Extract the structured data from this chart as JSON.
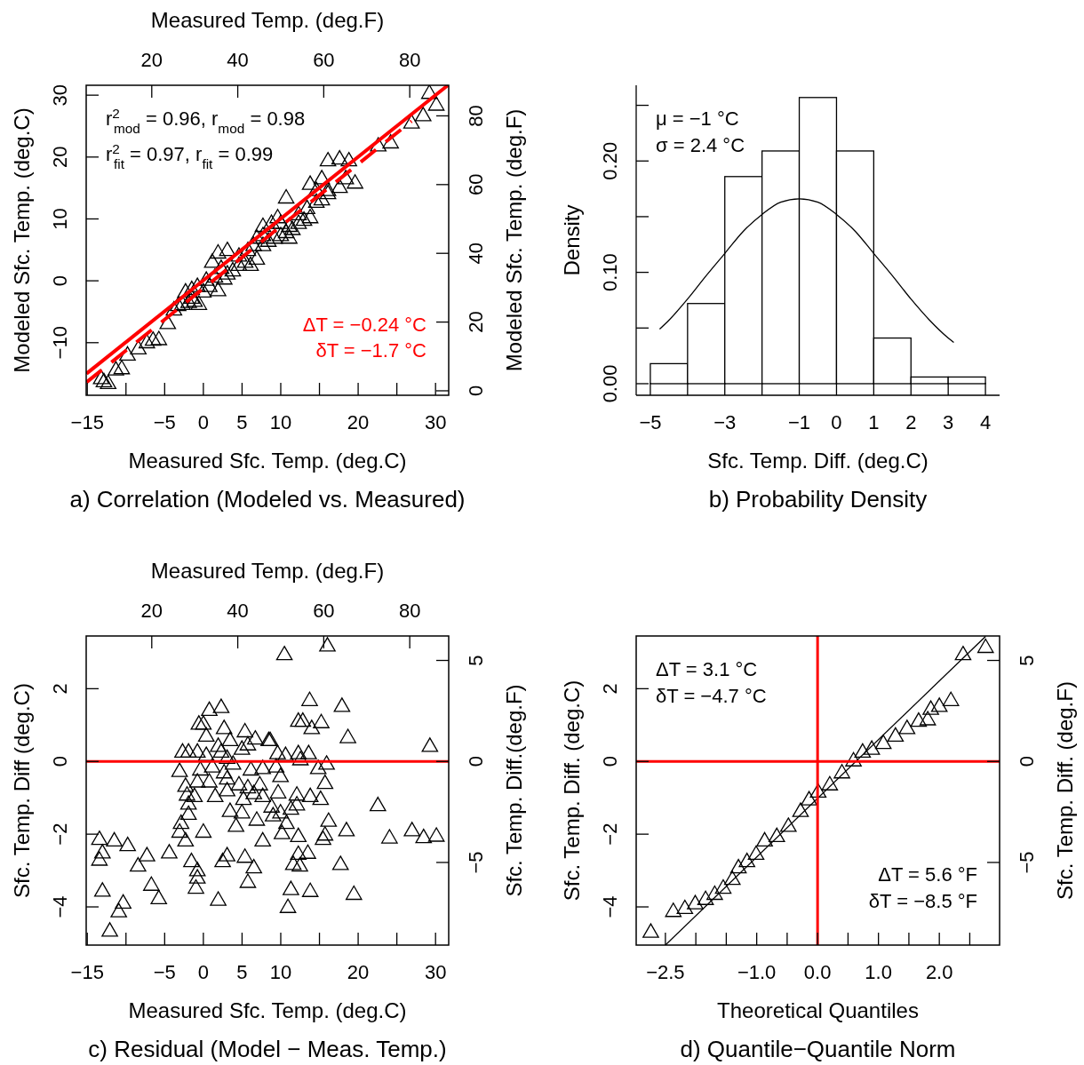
{
  "chart_data": [
    {
      "type": "scatter",
      "title": "a) Correlation (Modeled vs. Measured)",
      "xlabel": "Measured Sfc. Temp. (deg.C)",
      "ylabel": "Modeled Sfc. Temp. (deg.C)",
      "x2label": "Measured Temp. (deg.F)",
      "y2label": "Modeled Sfc. Temp. (deg.F)",
      "xlim": [
        -15.14,
        31.7
      ],
      "ylim": [
        -18.5,
        31.6
      ],
      "x2lim": [
        4.75,
        89.06
      ],
      "y2lim": [
        -1.3,
        88.9
      ],
      "xticks": [
        {
          "value": -15,
          "label": "−15"
        },
        {
          "value": -10,
          "label": null
        },
        {
          "value": -5,
          "label": "−5"
        },
        0,
        5,
        10,
        {
          "value": 15,
          "label": null
        },
        20,
        {
          "value": 25,
          "label": null
        },
        30
      ],
      "yticks": [
        {
          "value": -10,
          "label": "−10"
        },
        0,
        10,
        20,
        30
      ],
      "x2ticks": [
        20,
        40,
        60,
        80
      ],
      "y2ticks": [
        0,
        20,
        40,
        60,
        80
      ],
      "annotations": [
        "r$^{2}$$_{mod}$ = 0.96, r$_{mod}$ = 0.98",
        "r$^{2}$$_{fit}$ = 0.97, r$_{fit}$ = 0.99",
        "ΔT = −0.24 °C",
        "δT = −1.7 °C"
      ],
      "series": [
        {
          "type": "scatter",
          "color": "#000000",
          "marker": "triangle",
          "x": [
            -13.2,
            -12.85,
            -12.3,
            -11.3,
            -10.55,
            -9.8,
            -8.4,
            -7.3,
            -6.5,
            -5.75,
            -4.6,
            -3.26,
            -2.7,
            -1.9,
            -1.15,
            -0.58,
            -2.3,
            -1.5,
            -0.77,
            0.0,
            0.77,
            1.9,
            0.38,
            1.5,
            2.7,
            3.1,
            2.3,
            3.8,
            4.6,
            5.4,
            6.1,
            6.9,
            4.6,
            5.75,
            6.5,
            7.7,
            8.4,
            9.2,
            10.0,
            10.7,
            11.1,
            11.5,
            12.3,
            13.0,
            13.8,
            12.3,
            13.4,
            14.6,
            15.3,
            16.1,
            14.6,
            13.8,
            15.3,
            16.1,
            17.6,
            18.4,
            19.6,
            10.7,
            16.1,
            17.6,
            18.8,
            22.6,
            24.2,
            26.9,
            28.4,
            29.2,
            30.1,
            1.9,
            3.1,
            1.15,
            7.7,
            8.8,
            10.0,
            11.1,
            9.6,
            6.9,
            7.7,
            -1.5,
            -3.8
          ],
          "values": [
            -15.9,
            -16.4,
            -16.7,
            -14.5,
            -14.3,
            -12.1,
            -11.1,
            -10.1,
            -9.7,
            -9.6,
            -7.0,
            -4.1,
            -3.9,
            -3.6,
            -3.4,
            -3.9,
            -1.9,
            -1.5,
            -1.0,
            -1.9,
            -1.0,
            -1.7,
            0.0,
            0.5,
            0.2,
            1.0,
            1.9,
            1.5,
            2.4,
            2.9,
            2.4,
            3.4,
            3.9,
            4.8,
            5.6,
            5.6,
            6.3,
            6.8,
            7.2,
            7.7,
            6.8,
            8.2,
            9.2,
            9.7,
            10.1,
            10.6,
            11.6,
            12.6,
            13.0,
            14.0,
            14.5,
            15.5,
            16.4,
            14.5,
            15.0,
            16.4,
            15.7,
            13.3,
            19.3,
            19.6,
            19.3,
            21.7,
            22.2,
            25.4,
            26.6,
            30.2,
            28.3,
            4.4,
            4.8,
            2.9,
            8.7,
            9.2,
            9.2,
            8.7,
            10.1,
            6.8,
            7.2,
            -2.9,
            -4.8
          ]
        },
        {
          "type": "line",
          "color": "#ff0000",
          "line_style": "solid",
          "marker": "none",
          "x": [
            -15.1,
            31.6
          ],
          "values": [
            -15.0,
            31.6
          ]
        },
        {
          "type": "line",
          "color": "#ff0000",
          "line_style": "dashed",
          "marker": "none",
          "x": [
            -15.1,
            26.9
          ],
          "values": [
            -16.4,
            25.8
          ]
        }
      ]
    },
    {
      "type": "histogram",
      "title": "b) Probability Density",
      "xlabel": "Sfc. Temp. Diff. (deg.C)",
      "ylabel": "Density",
      "xlim": [
        -5.38,
        4.38
      ],
      "ylim": [
        -0.0104,
        0.268
      ],
      "xticks": [
        {
          "value": -5,
          "label": "−5"
        },
        {
          "value": -4,
          "label": null
        },
        {
          "value": -3,
          "label": "−3"
        },
        {
          "value": -2,
          "label": null
        },
        {
          "value": -1,
          "label": "−1"
        },
        0,
        1,
        2,
        3,
        4
      ],
      "yticks": [
        {
          "value": 0,
          "label": "0.00"
        },
        {
          "value": 0.05,
          "label": null
        },
        {
          "value": 0.1,
          "label": "0.10"
        },
        {
          "value": 0.15,
          "label": null
        },
        {
          "value": 0.2,
          "label": "0.20"
        },
        {
          "value": 0.25,
          "label": null
        }
      ],
      "annotations": [
        "μ = −1 °C",
        "σ = 2.4 °C"
      ],
      "bins": [
        -5,
        -4,
        -3,
        -2,
        -1,
        0,
        1,
        2,
        3,
        4
      ],
      "values": [
        0.018,
        0.072,
        0.186,
        0.209,
        0.257,
        0.209,
        0.041,
        0.006,
        0.006
      ],
      "color": "#ffffff",
      "series": [
        {
          "type": "line",
          "color": "#000000",
          "line_style": "solid",
          "x": [
            -4.75,
            -4.5,
            -4,
            -3.5,
            -3,
            -2.5,
            -2,
            -1.5,
            -1,
            -0.5,
            0,
            0.5,
            1,
            1.5,
            2,
            2.5,
            3,
            3.15
          ],
          "values": [
            0.049,
            0.057,
            0.076,
            0.097,
            0.117,
            0.137,
            0.152,
            0.163,
            0.166,
            0.163,
            0.152,
            0.137,
            0.117,
            0.097,
            0.076,
            0.057,
            0.041,
            0.037
          ]
        }
      ]
    },
    {
      "type": "scatter",
      "title": "c) Residual (Model − Meas. Temp.)",
      "xlabel": "Measured Sfc. Temp. (deg.C)",
      "ylabel": "Sfc. Temp. Diff (deg.C)",
      "x2label": "Measured Temp. (deg.F)",
      "y2label": "Sfc. Temp. Diff.(deg.F)",
      "xlim": [
        -15.14,
        31.7
      ],
      "ylim": [
        -5.05,
        3.45
      ],
      "x2lim": [
        4.75,
        89.06
      ],
      "y2lim": [
        -9.09,
        6.21
      ],
      "xticks": [
        {
          "value": -15,
          "label": "−15"
        },
        {
          "value": -10,
          "label": null
        },
        {
          "value": -5,
          "label": "−5"
        },
        0,
        5,
        10,
        {
          "value": 15,
          "label": null
        },
        20,
        {
          "value": 25,
          "label": null
        },
        30
      ],
      "yticks": [
        {
          "value": -4,
          "label": "−4"
        },
        {
          "value": -2,
          "label": "−2"
        },
        0,
        2
      ],
      "x2ticks": [
        20,
        40,
        60,
        80
      ],
      "y2ticks": [
        {
          "value": -5,
          "label": "−5"
        },
        0,
        5
      ],
      "ref_lines": [
        {
          "axis": "y",
          "value": 0,
          "color": "#ff0000"
        }
      ],
      "series": [
        {
          "type": "scatter",
          "color": "#000000",
          "marker": "triangle",
          "x": [
            0.77,
            2.3,
            -0.58,
            0.0,
            2.68,
            5.37,
            6.71,
            8.44,
            0.38,
            1.92,
            3.45,
            4.98,
            5.75,
            -2.69,
            -1.92,
            -0.77,
            0.38,
            2.3,
            3.07,
            -3.07,
            -0.39,
            1.15,
            2.68,
            3.83,
            6.14,
            7.67,
            -2.3,
            -0.77,
            0.77,
            3.07,
            4.6,
            5.75,
            7.29,
            -2.11,
            -1.15,
            1.53,
            3.07,
            5.18,
            6.52,
            7.67,
            -1.92,
            -1.92,
            3.45,
            4.98,
            4.22,
            6.9,
            -2.88,
            -3.07,
            -2.3,
            0.0,
            7.67,
            -13.43,
            -11.51,
            -9.78,
            -13.04,
            -13.43,
            -7.29,
            -8.44,
            -4.41,
            -1.54,
            -0.77,
            -0.77,
            -0.96,
            2.49,
            3.07,
            5.37,
            6.52,
            5.75,
            -6.72,
            -5.76,
            -13.04,
            -10.36,
            -10.93,
            1.92,
            -12.09,
            10.47,
            16.03,
            13.73,
            17.91,
            12.27,
            12.85,
            15.23,
            14.0,
            18.68,
            29.27,
            8.63,
            9.59,
            10.62,
            12.27,
            13.6,
            12.54,
            14.84,
            15.92,
            9.4,
            9.97,
            15.72,
            9.66,
            12.08,
            13.81,
            15.15,
            12.08,
            11.31,
            8.82,
            9.97,
            9.01,
            10.74,
            16.18,
            10.16,
            12.27,
            15.72,
            15.46,
            18.49,
            22.55,
            24.05,
            26.96,
            28.46,
            30.11,
            12.27,
            13.5,
            11.62,
            12.47,
            17.72,
            11.31,
            13.81,
            19.45,
            10.93
          ],
          "values": [
            1.39,
            1.47,
            1.01,
            1.01,
            0.89,
            0.8,
            0.6,
            0.56,
            0.68,
            0.4,
            0.56,
            0.32,
            0.44,
            0.24,
            0.24,
            0.24,
            0.15,
            0.24,
            0.07,
            -0.29,
            -0.25,
            -0.17,
            -0.33,
            -0.09,
            -0.25,
            -0.21,
            -0.7,
            -0.58,
            -0.58,
            -0.5,
            -0.66,
            -0.74,
            -0.66,
            -0.94,
            -0.98,
            -0.98,
            -0.82,
            -1.06,
            -0.9,
            -0.98,
            -1.19,
            -1.47,
            -1.39,
            -1.43,
            -1.8,
            -1.63,
            -1.72,
            -1.96,
            -2.2,
            -1.96,
            -2.2,
            -2.16,
            -2.2,
            -2.33,
            -2.53,
            -2.73,
            -2.61,
            -2.89,
            -2.53,
            -2.77,
            -3.02,
            -3.22,
            -3.5,
            -2.77,
            -2.61,
            -2.65,
            -2.94,
            -3.34,
            -3.42,
            -3.79,
            -3.58,
            -3.91,
            -4.15,
            -3.83,
            -4.68,
            2.92,
            3.16,
            1.66,
            1.5,
            1.09,
            1.09,
            1.05,
            0.89,
            0.64,
            0.4,
            0.56,
            0.2,
            0.15,
            0.2,
            0.2,
            0.03,
            -0.21,
            -0.09,
            -0.17,
            -0.43,
            -0.62,
            -0.88,
            -0.94,
            -0.98,
            -1.06,
            -1.21,
            -1.33,
            -1.27,
            -1.43,
            -1.51,
            -1.72,
            -1.66,
            -2.0,
            -2.08,
            -2.04,
            -2.16,
            -1.92,
            -1.23,
            -2.12,
            -1.92,
            -2.11,
            -2.07,
            -2.57,
            -2.54,
            -2.85,
            -2.89,
            -2.85,
            -3.54,
            -3.59,
            -3.67,
            -4.03
          ]
        }
      ]
    },
    {
      "type": "scatter",
      "title": "d) Quantile−Quantile Norm",
      "xlabel": "Theoretical Quantiles",
      "ylabel": "Sfc. Temp. Diff. (deg.C)",
      "y2label": "Sfc. Temp. Diff. (deg.F)",
      "xlim": [
        -2.98,
        2.99
      ],
      "ylim": [
        -5.05,
        3.45
      ],
      "y2lim": [
        -9.09,
        6.21
      ],
      "xticks": [
        {
          "value": -2.5,
          "label": "−2.5"
        },
        {
          "value": -2,
          "label": null
        },
        {
          "value": -1.5,
          "label": null
        },
        {
          "value": -1,
          "label": "−1.0"
        },
        {
          "value": -0.5,
          "label": null
        },
        {
          "value": 0,
          "label": "0.0"
        },
        {
          "value": 0.5,
          "label": null
        },
        {
          "value": 1,
          "label": "1.0"
        },
        {
          "value": 1.5,
          "label": null
        },
        {
          "value": 2,
          "label": "2.0"
        },
        {
          "value": 2.5,
          "label": null
        }
      ],
      "yticks": [
        {
          "value": -4,
          "label": "−4"
        },
        {
          "value": -2,
          "label": "−2"
        },
        0,
        2
      ],
      "y2ticks": [
        {
          "value": -5,
          "label": "−5"
        },
        0,
        5
      ],
      "annotations": [
        "ΔT = 3.1 °C",
        "δT = −4.7 °C",
        "ΔT = 5.6 °F",
        "δT = −8.5 °F"
      ],
      "ref_lines": [
        {
          "axis": "x",
          "value": 0,
          "color": "#ff0000"
        },
        {
          "axis": "y",
          "value": 0,
          "color": "#ff0000"
        }
      ],
      "series": [
        {
          "type": "scatter",
          "color": "#000000",
          "marker": "triangle",
          "x": [
            -2.74,
            -2.37,
            -2.18,
            -2.01,
            -1.84,
            -1.69,
            -1.55,
            -1.4,
            -1.3,
            -1.16,
            -1.01,
            -0.87,
            -0.67,
            -0.48,
            -0.28,
            -0.14,
            0.01,
            0.2,
            0.4,
            0.59,
            0.74,
            0.89,
            1.08,
            1.28,
            1.47,
            1.66,
            1.81,
            1.86,
            2.0,
            2.19,
            2.39,
            2.76
          ],
          "values": [
            -4.71,
            -4.14,
            -4.06,
            -3.93,
            -3.81,
            -3.67,
            -3.5,
            -3.26,
            -2.94,
            -2.77,
            -2.57,
            -2.2,
            -2.08,
            -1.8,
            -1.39,
            -1.07,
            -0.86,
            -0.66,
            -0.33,
            0.0,
            0.24,
            0.32,
            0.48,
            0.68,
            0.89,
            1.09,
            1.13,
            1.42,
            1.5,
            1.66,
            2.92,
            3.12
          ]
        },
        {
          "type": "line",
          "color": "#000000",
          "line_style": "solid",
          "marker": "none",
          "x": [
            -2.5,
            2.76
          ],
          "values": [
            -5.05,
            3.44
          ]
        }
      ]
    }
  ]
}
